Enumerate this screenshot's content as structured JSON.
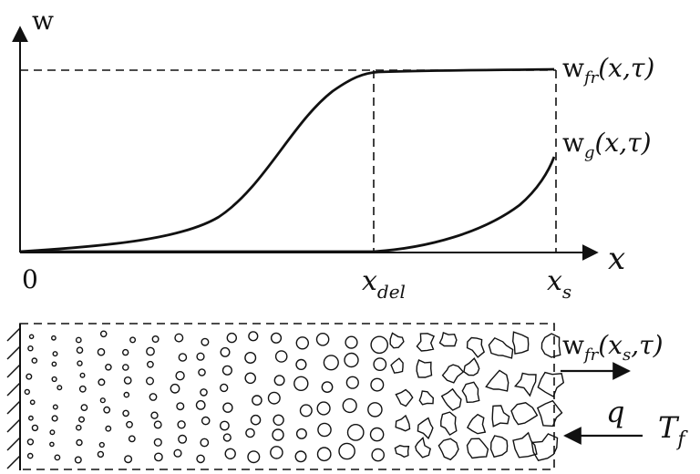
{
  "plot": {
    "y_axis_label": "w",
    "origin_label": "0",
    "x_axis_label": "x",
    "x_del": {
      "main": "x",
      "sub": "del"
    },
    "x_s": {
      "main": "x",
      "sub": "s"
    },
    "curve_fr": {
      "w": "w",
      "sub": "fr",
      "args": "(x,τ)"
    },
    "curve_g": {
      "w": "w",
      "sub": "g",
      "args": "(x,τ)"
    }
  },
  "sample": {
    "outflow": {
      "w": "w",
      "sub": "fr",
      "args": "(x",
      "args_sub": "s",
      "args_end": ",τ)"
    },
    "heat_flux": "q",
    "temperature": {
      "main": "T",
      "sub": "f"
    }
  },
  "colors": {
    "ink": "#111111",
    "background": "#ffffff"
  }
}
